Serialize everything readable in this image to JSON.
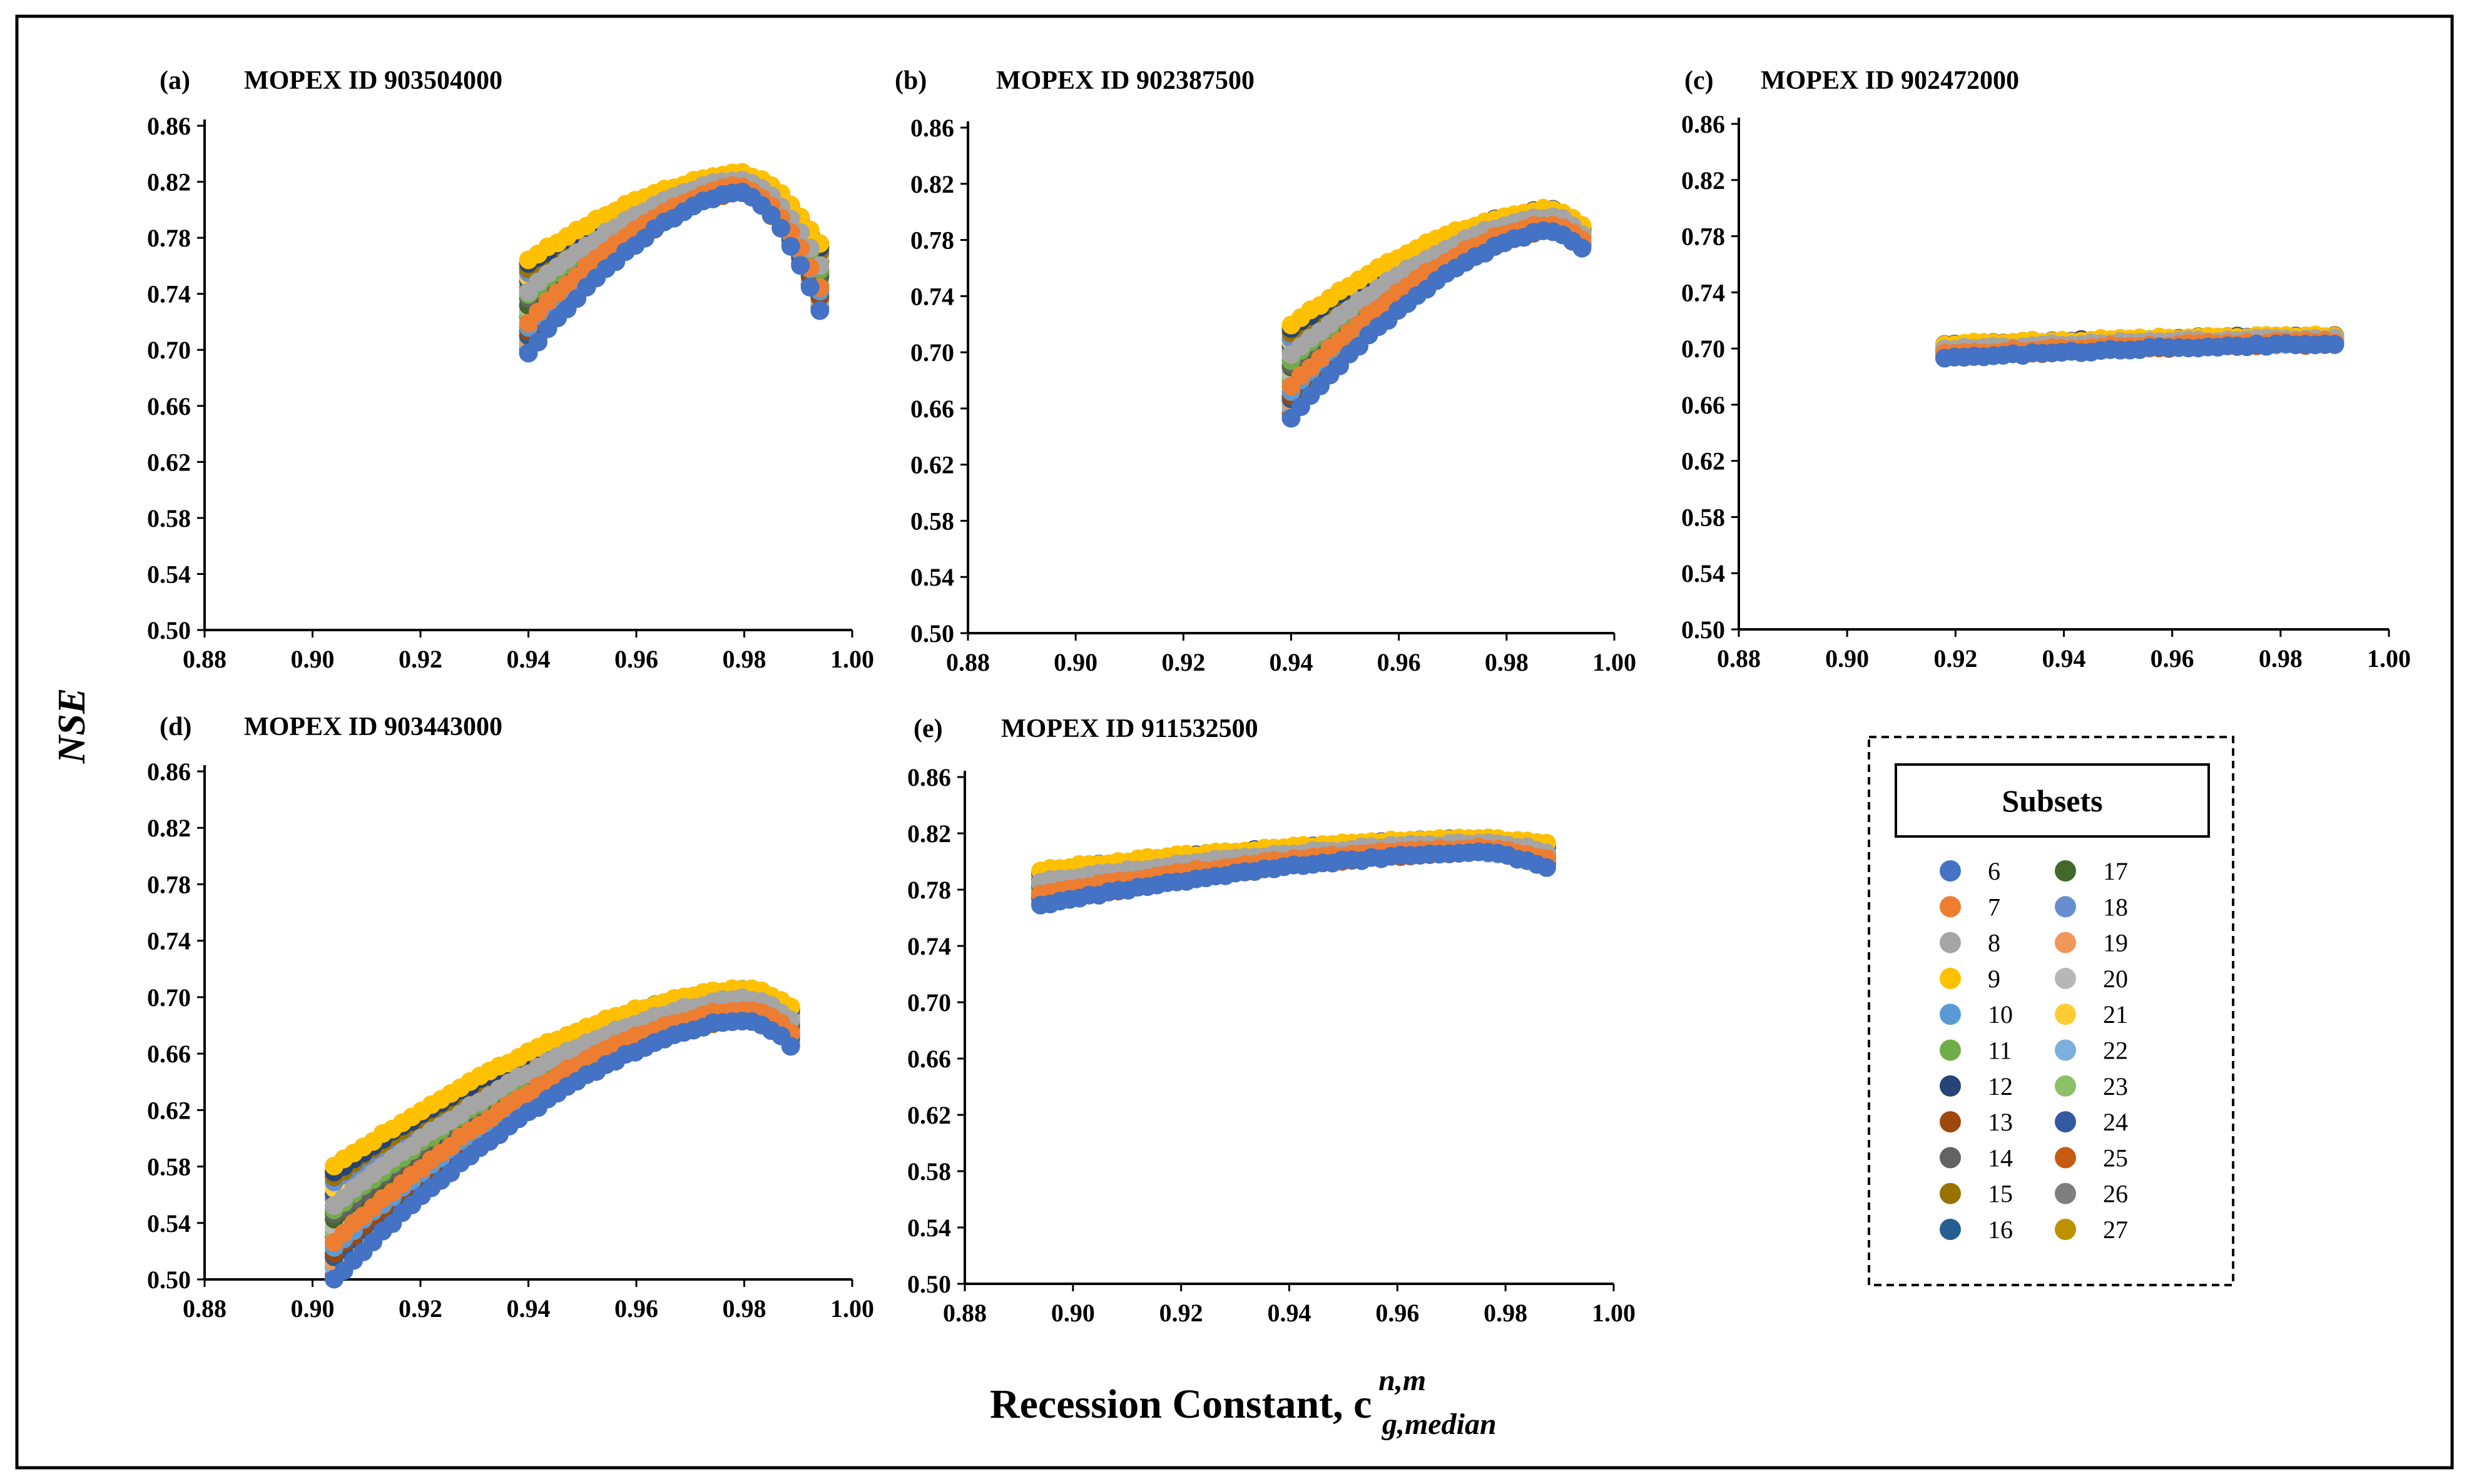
{
  "figure": {
    "y_axis_title": "NSE",
    "x_axis_title_main": "Recession Constant, c",
    "x_axis_title_sub": "g,median",
    "x_axis_title_sup": "n,m"
  },
  "legend": {
    "title": "Subsets",
    "items": [
      {
        "label": "6",
        "color": "#4472C4"
      },
      {
        "label": "7",
        "color": "#ED7D31"
      },
      {
        "label": "8",
        "color": "#A5A5A5"
      },
      {
        "label": "9",
        "color": "#FFC000"
      },
      {
        "label": "10",
        "color": "#5B9BD5"
      },
      {
        "label": "11",
        "color": "#70AD47"
      },
      {
        "label": "12",
        "color": "#264478"
      },
      {
        "label": "13",
        "color": "#9E480E"
      },
      {
        "label": "14",
        "color": "#636363"
      },
      {
        "label": "15",
        "color": "#997300"
      },
      {
        "label": "16",
        "color": "#255E91"
      },
      {
        "label": "17",
        "color": "#43682B"
      },
      {
        "label": "18",
        "color": "#698ED0"
      },
      {
        "label": "19",
        "color": "#F1975A"
      },
      {
        "label": "20",
        "color": "#B7B7B7"
      },
      {
        "label": "21",
        "color": "#FFCD33"
      },
      {
        "label": "22",
        "color": "#7CAFDD"
      },
      {
        "label": "23",
        "color": "#8CC168"
      },
      {
        "label": "24",
        "color": "#335AA1"
      },
      {
        "label": "25",
        "color": "#C55A11"
      },
      {
        "label": "26",
        "color": "#7F7F7F"
      },
      {
        "label": "27",
        "color": "#BF9000"
      }
    ]
  },
  "chart_data": [
    {
      "type": "scatter",
      "panel": "(a)",
      "title": "MOPEX ID 903504000",
      "xlim": [
        0.88,
        1.0
      ],
      "ylim": [
        0.5,
        0.86
      ],
      "xticks": [
        "0.88",
        "0.90",
        "0.92",
        "0.94",
        "0.96",
        "0.98",
        "1.00"
      ],
      "yticks": [
        "0.50",
        "0.54",
        "0.58",
        "0.62",
        "0.66",
        "0.70",
        "0.74",
        "0.78",
        "0.82",
        "0.86"
      ],
      "series_shape": {
        "x_start": 0.94,
        "x_end": 0.994,
        "x_peak": 0.979,
        "y_start_range": [
          0.698,
          0.764
        ],
        "y_peak_range": [
          0.812,
          0.826
        ],
        "y_end_range": [
          0.728,
          0.776
        ]
      }
    },
    {
      "type": "scatter",
      "panel": "(b)",
      "title": "MOPEX ID 902387500",
      "xlim": [
        0.88,
        1.0
      ],
      "ylim": [
        0.5,
        0.86
      ],
      "xticks": [
        "0.88",
        "0.90",
        "0.92",
        "0.94",
        "0.96",
        "0.98",
        "1.00"
      ],
      "yticks": [
        "0.50",
        "0.54",
        "0.58",
        "0.62",
        "0.66",
        "0.70",
        "0.74",
        "0.78",
        "0.82",
        "0.86"
      ],
      "series_shape": {
        "x_start": 0.94,
        "x_end": 0.994,
        "x_peak": 0.988,
        "y_start_range": [
          0.654,
          0.72
        ],
        "y_peak_range": [
          0.786,
          0.802
        ],
        "y_end_range": [
          0.774,
          0.79
        ]
      }
    },
    {
      "type": "scatter",
      "panel": "(c)",
      "title": "MOPEX ID 902472000",
      "xlim": [
        0.88,
        1.0
      ],
      "ylim": [
        0.5,
        0.86
      ],
      "xticks": [
        "0.88",
        "0.90",
        "0.92",
        "0.94",
        "0.96",
        "0.98",
        "1.00"
      ],
      "yticks": [
        "0.50",
        "0.54",
        "0.58",
        "0.62",
        "0.66",
        "0.70",
        "0.74",
        "0.78",
        "0.82",
        "0.86"
      ],
      "series_shape": {
        "x_start": 0.918,
        "x_end": 0.991,
        "x_peak": 0.991,
        "y_start_range": [
          0.693,
          0.703
        ],
        "y_peak_range": [
          0.703,
          0.709
        ],
        "y_end_range": [
          0.703,
          0.709
        ]
      }
    },
    {
      "type": "scatter",
      "panel": "(d)",
      "title": "MOPEX ID 903443000",
      "xlim": [
        0.88,
        1.0
      ],
      "ylim": [
        0.5,
        0.86
      ],
      "xticks": [
        "0.88",
        "0.90",
        "0.92",
        "0.94",
        "0.96",
        "0.98",
        "1.00"
      ],
      "yticks": [
        "0.50",
        "0.54",
        "0.58",
        "0.62",
        "0.66",
        "0.70",
        "0.74",
        "0.78",
        "0.82",
        "0.86"
      ],
      "series_shape": {
        "x_start": 0.904,
        "x_end": 0.99,
        "x_peak": 0.98,
        "y_start_range": [
          0.5,
          0.58
        ],
        "y_peak_range": [
          0.684,
          0.706
        ],
        "y_end_range": [
          0.66,
          0.69
        ]
      }
    },
    {
      "type": "scatter",
      "panel": "(e)",
      "title": "MOPEX ID 911532500",
      "xlim": [
        0.88,
        1.0
      ],
      "ylim": [
        0.5,
        0.86
      ],
      "xticks": [
        "0.88",
        "0.90",
        "0.92",
        "0.94",
        "0.96",
        "0.98",
        "1.00"
      ],
      "yticks": [
        "0.50",
        "0.54",
        "0.58",
        "0.62",
        "0.66",
        "0.70",
        "0.74",
        "0.78",
        "0.82",
        "0.86"
      ],
      "series_shape": {
        "x_start": 0.894,
        "x_end": 0.988,
        "x_peak": 0.975,
        "y_start_range": [
          0.769,
          0.794
        ],
        "y_peak_range": [
          0.806,
          0.816
        ],
        "y_end_range": [
          0.796,
          0.812
        ]
      }
    }
  ]
}
